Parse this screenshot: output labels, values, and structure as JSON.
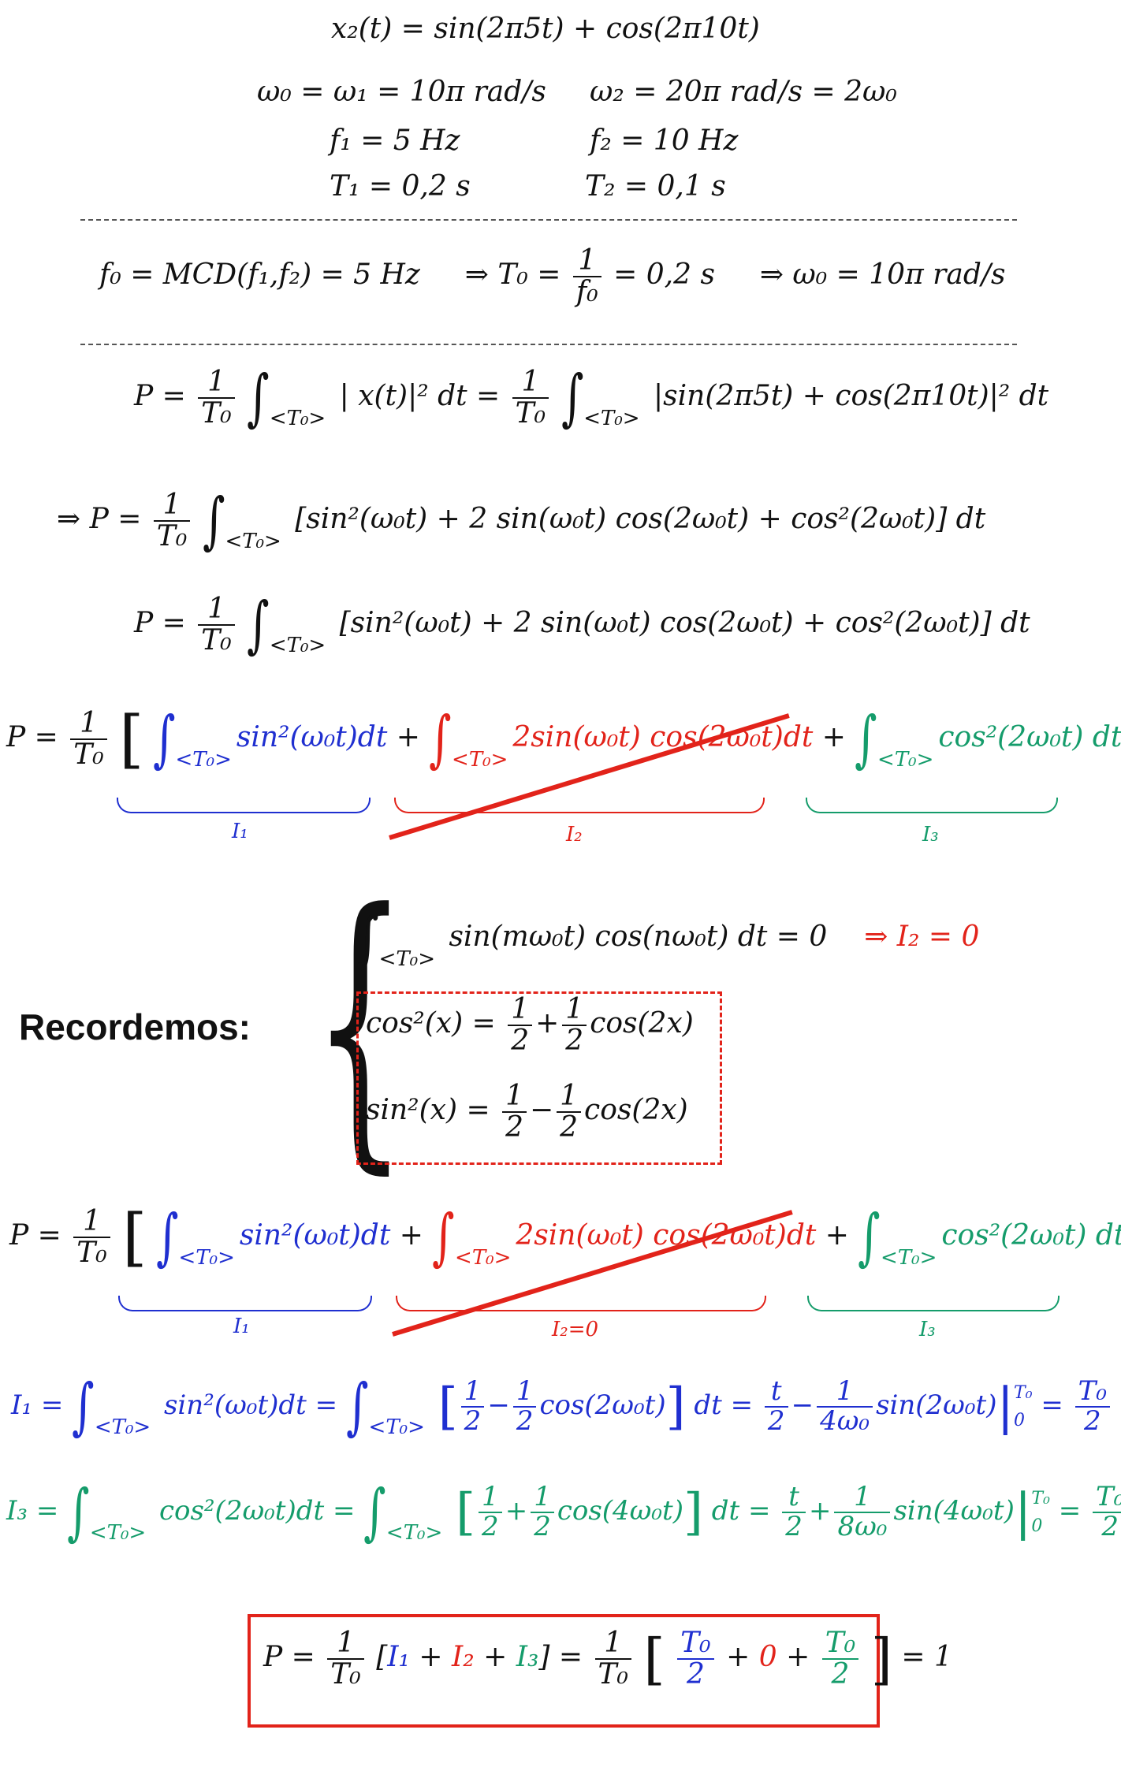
{
  "header": {
    "signal": "x₂(t) = sin(2π5t) + cos(2π10t)",
    "omega_left": "ω₀ = ω₁ = 10π rad/s",
    "omega_right": "ω₂ = 20π rad/s = 2ω₀",
    "f1": "f₁ = 5 Hz",
    "f2": "f₂ = 10 Hz",
    "T1": "T₁ = 0,2 s",
    "T2": "T₂ = 0,1 s"
  },
  "fundamental": {
    "f0": "f₀ = MCD(f₁,f₂) = 5 Hz",
    "T0_pre": "⇒ T₀ =",
    "T0_num": "1",
    "T0_den": "f₀",
    "T0_post": "= 0,2 s",
    "w0": "⇒ ω₀ = 10π rad/s"
  },
  "power": {
    "P_eq": "P =",
    "one": "1",
    "T0": "T₀",
    "eq": "=",
    "lim": "<T₀>",
    "abs_x": "| x(t)|² dt",
    "abs_sum": "|sin(2π5t) + cos(2π10t)|² dt",
    "implies_P": "⇒ P =",
    "expanded": "[sin²(ω₀t) + 2 sin(ω₀t) cos(2ω₀t) + cos²(2ω₀t)]  dt",
    "expanded_lim": "<T₀>"
  },
  "split": {
    "i1_term": "sin²(ω₀t)dt",
    "plus": "+",
    "i2_term": "2sin(ω₀t) cos(2ω₀t)dt",
    "i3_term": "cos²(2ω₀t) dt",
    "label_I1": "I₁",
    "label_I2": "I₂",
    "label_I2_zero": "I₂=0",
    "label_I3": "I₃"
  },
  "recall": {
    "title": "Recordemos:",
    "ortho": "sin(mω₀t) cos(nω₀t) dt = 0",
    "ortho_result": "⇒ I₂ = 0",
    "cos2_lhs": "cos²(x) =",
    "sin2_lhs": "sin²(x) =",
    "half": "1",
    "two": "2",
    "cos2x": "cos(2x)",
    "plus": "+",
    "minus": "−"
  },
  "integrals": {
    "I1_lhs": "I₁ =",
    "I1_integrand": "sin²(ω₀t)dt =",
    "I1_inner": "cos(2ω₀t)",
    "I1_dt": "dt =",
    "I1_t": "t",
    "I1_minus": "−",
    "I1_den": "4ω₀",
    "I1_sin": "sin(2ω₀t)",
    "I3_lhs": "I₃ =",
    "I3_integrand": "cos²(2ω₀t)dt =",
    "I3_inner": "cos(4ω₀t)",
    "I3_dt": "dt =",
    "I3_plus": "+",
    "I3_den": "8ω₀",
    "I3_sin": "sin(4ω₀t)",
    "eval_top": "T₀",
    "eval_bot": "0",
    "result": "T₀",
    "two": "2",
    "eqs": "="
  },
  "final": {
    "P": "P =",
    "bracket": "[",
    "I1": "I₁",
    "p1": "+",
    "I2": "I₂",
    "p2": "+",
    "I3": "I₃",
    "close": "]",
    "eq": "=",
    "zero": "0",
    "result": "= 1"
  },
  "colors": {
    "blue": "#1f2fd0",
    "red": "#e2231a",
    "green": "#159c6b"
  }
}
